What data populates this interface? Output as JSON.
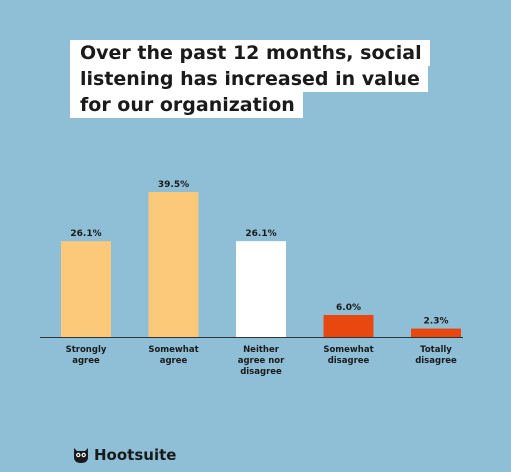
{
  "title_lines": [
    "Over the past 12 months, social",
    "listening has increased in value",
    "for our organization"
  ],
  "brand": "Hootsuite",
  "colors": {
    "background": "#8fbfd6",
    "agree": "#fcc97b",
    "neutral": "#ffffff",
    "disagree": "#e8480f",
    "text": "#1a1a1a",
    "baseline": "#333333"
  },
  "chart_data": {
    "type": "bar",
    "title": "Over the past 12 months, social listening has increased in value for our organization",
    "categories": [
      [
        "Strongly",
        "agree"
      ],
      [
        "Somewhat",
        "agree"
      ],
      [
        "Neither",
        "agree nor",
        "disagree"
      ],
      [
        "Somewhat",
        "disagree"
      ],
      [
        "Totally",
        "disagree"
      ]
    ],
    "values": [
      26.1,
      39.5,
      26.1,
      6.0,
      2.3
    ],
    "value_labels": [
      "26.1%",
      "39.5%",
      "26.1%",
      "6.0%",
      "2.3%"
    ],
    "bar_colors": [
      "#fcc97b",
      "#fcc97b",
      "#ffffff",
      "#e8480f",
      "#e8480f"
    ],
    "ylim": [
      0,
      39.5
    ],
    "grid": false
  }
}
